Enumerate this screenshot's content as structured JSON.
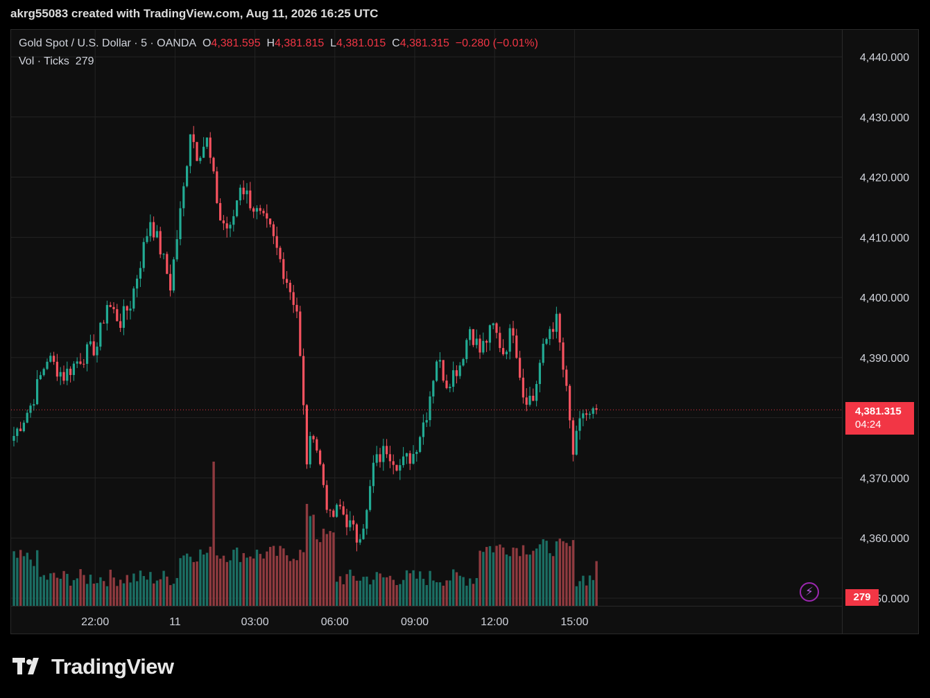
{
  "header": {
    "attribution": "akrg55083 created with TradingView.com, Aug 11, 2026 16:25 UTC"
  },
  "legend": {
    "symbol": "Gold Spot / U.S. Dollar · 5 · OANDA",
    "open_label": "O",
    "open": "4,381.595",
    "high_label": "H",
    "high": "4,381.815",
    "low_label": "L",
    "low": "4,381.015",
    "close_label": "C",
    "close": "4,381.315",
    "change": "−0.280 (−0.01%)",
    "vol_label": "Vol · Ticks",
    "vol_value": "279"
  },
  "price_tag": {
    "price": "4,381.315",
    "countdown": "04:24"
  },
  "volume_tag": "279",
  "brand": {
    "name": "TradingView"
  },
  "colors": {
    "up": "#22ab94",
    "down": "#f7525f",
    "up_vol": "#1b6e63",
    "down_vol": "#8f3a3f",
    "accent": "#f23645"
  },
  "icons": {
    "alert": "lightning-icon",
    "brand_logo": "tradingview-logo-icon"
  },
  "chart_data": {
    "type": "candlestick",
    "title": "Gold Spot / U.S. Dollar",
    "interval": "5",
    "ylim": [
      4350,
      4440
    ],
    "yticks": [
      4440,
      4430,
      4420,
      4410,
      4400,
      4390,
      4380,
      4370,
      4360,
      4350
    ],
    "ytick_labels": [
      "4,440.000",
      "4,430.000",
      "4,420.000",
      "4,410.000",
      "4,400.000",
      "4,390.000",
      "",
      "4,370.000",
      "4,360.000",
      "4,350.000"
    ],
    "xtick_labels": [
      "22:00",
      "11",
      "03:00",
      "06:00",
      "09:00",
      "12:00",
      "15:00"
    ],
    "xtick_bar_index": [
      24,
      48,
      72,
      96,
      120,
      144,
      168
    ],
    "last_price": 4381.315,
    "close_path": [
      {
        "bar": 0,
        "price": 4377
      },
      {
        "bar": 5,
        "price": 4382
      },
      {
        "bar": 10,
        "price": 4390
      },
      {
        "bar": 15,
        "price": 4387
      },
      {
        "bar": 20,
        "price": 4390
      },
      {
        "bar": 25,
        "price": 4392
      },
      {
        "bar": 28,
        "price": 4399
      },
      {
        "bar": 32,
        "price": 4396
      },
      {
        "bar": 35,
        "price": 4399
      },
      {
        "bar": 38,
        "price": 4406
      },
      {
        "bar": 41,
        "price": 4413
      },
      {
        "bar": 44,
        "price": 4408
      },
      {
        "bar": 47,
        "price": 4402
      },
      {
        "bar": 51,
        "price": 4418
      },
      {
        "bar": 53,
        "price": 4428
      },
      {
        "bar": 55,
        "price": 4424
      },
      {
        "bar": 58,
        "price": 4426
      },
      {
        "bar": 62,
        "price": 4413
      },
      {
        "bar": 65,
        "price": 4411
      },
      {
        "bar": 68,
        "price": 4419
      },
      {
        "bar": 73,
        "price": 4414
      },
      {
        "bar": 77,
        "price": 4411
      },
      {
        "bar": 82,
        "price": 4403
      },
      {
        "bar": 85,
        "price": 4398
      },
      {
        "bar": 88,
        "price": 4373
      },
      {
        "bar": 90,
        "price": 4378
      },
      {
        "bar": 92,
        "price": 4372
      },
      {
        "bar": 95,
        "price": 4363
      },
      {
        "bar": 98,
        "price": 4365
      },
      {
        "bar": 103,
        "price": 4360
      },
      {
        "bar": 106,
        "price": 4364
      },
      {
        "bar": 108,
        "price": 4372
      },
      {
        "bar": 112,
        "price": 4375
      },
      {
        "bar": 116,
        "price": 4372
      },
      {
        "bar": 120,
        "price": 4374
      },
      {
        "bar": 124,
        "price": 4381
      },
      {
        "bar": 127,
        "price": 4390
      },
      {
        "bar": 130,
        "price": 4386
      },
      {
        "bar": 134,
        "price": 4389
      },
      {
        "bar": 137,
        "price": 4395
      },
      {
        "bar": 140,
        "price": 4391
      },
      {
        "bar": 144,
        "price": 4395
      },
      {
        "bar": 147,
        "price": 4391
      },
      {
        "bar": 150,
        "price": 4395
      },
      {
        "bar": 153,
        "price": 4384
      },
      {
        "bar": 156,
        "price": 4383
      },
      {
        "bar": 158,
        "price": 4389
      },
      {
        "bar": 161,
        "price": 4395
      },
      {
        "bar": 163,
        "price": 4396
      },
      {
        "bar": 166,
        "price": 4384
      },
      {
        "bar": 168,
        "price": 4374
      },
      {
        "bar": 171,
        "price": 4381
      },
      {
        "bar": 173,
        "price": 4380
      },
      {
        "bar": 175,
        "price": 4381.315
      }
    ]
  }
}
